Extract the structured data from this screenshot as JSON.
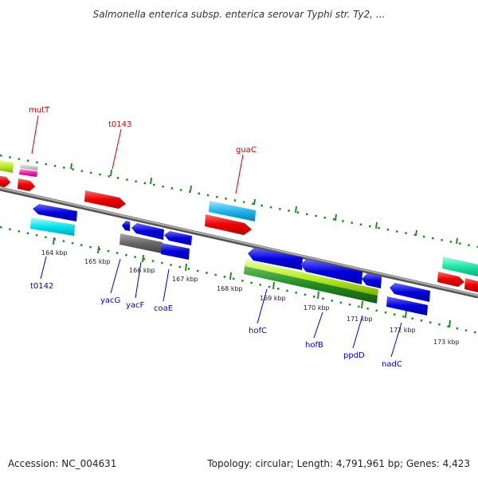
{
  "title": "Salmonella enterica subsp. enterica serovar Typhi str. Ty2, ...",
  "footer": {
    "accession": "Accession: NC_004631",
    "topology": "Topology: circular; Length: 4,791,961 bp; Genes: 4,423"
  },
  "scale_labels": [
    "164 kbp",
    "165 kbp",
    "166 kbp",
    "167 kbp",
    "168 kbp",
    "169 kbp",
    "170 kbp",
    "171 kbp",
    "172 kbp",
    "173 kbp"
  ],
  "genes_forward": [
    "mutT",
    "t0143",
    "guaC"
  ],
  "genes_reverse": [
    "t0142",
    "yacG",
    "yacF",
    "coaE",
    "hofC",
    "hofB",
    "ppdD",
    "nadC"
  ],
  "colors": {
    "forward_label": "#cc0000",
    "reverse_label": "#0000cc",
    "scale": "#228b22",
    "backbone": "#888888"
  }
}
